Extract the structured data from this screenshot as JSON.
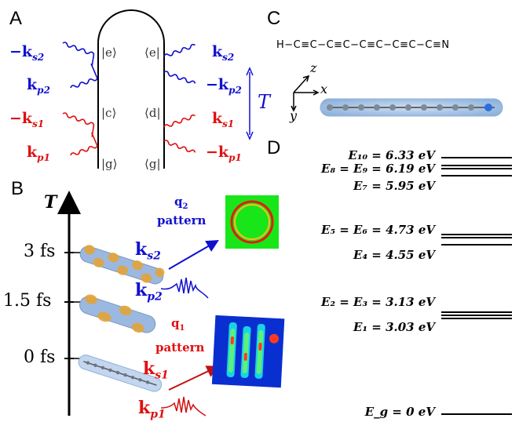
{
  "panels": {
    "A": "A",
    "B": "B",
    "C": "C",
    "D": "D"
  },
  "panelA": {
    "kets_left": [
      "|e⟩",
      "|c⟩",
      "|g⟩"
    ],
    "bras_right": [
      "⟨e|",
      "⟨d|",
      "⟨g|"
    ],
    "left_labels": [
      "−k",
      "k",
      "−k",
      "k"
    ],
    "left_subs": [
      "s2",
      "p2",
      "s1",
      "p1"
    ],
    "right_labels": [
      "k",
      "−k",
      "k",
      "−k"
    ],
    "right_subs": [
      "s2",
      "p2",
      "s1",
      "p1"
    ],
    "T_label": "T",
    "colors": {
      "blue": "#1010d0",
      "red": "#e01010"
    }
  },
  "panelB": {
    "axis_label": "T",
    "ticks": [
      "3 fs",
      "1.5 fs",
      "0 fs"
    ],
    "q2": "q",
    "q2_sub": "2",
    "q2_pattern": "pattern",
    "q1": "q",
    "q1_sub": "1",
    "q1_pattern": "pattern",
    "ks2": "k",
    "ks2_sub": "s2",
    "kp2": "k",
    "kp2_sub": "p2",
    "ks1": "k",
    "ks1_sub": "s1",
    "kp1": "k",
    "kp1_sub": "p1"
  },
  "panelC": {
    "formula": "H−C≡C−C≡C−C≡C−C≡C−C≡N",
    "axes": {
      "x": "x",
      "y": "y",
      "z": "z"
    }
  },
  "panelD": {
    "levels": [
      {
        "label": "E₁₀ = 6.33 eV"
      },
      {
        "label": "E₈ = E₉ = 6.19 eV"
      },
      {
        "label": "E₇ = 5.95 eV"
      },
      {
        "label": "E₅ = E₆ = 4.73 eV"
      },
      {
        "label": "E₄ = 4.55 eV"
      },
      {
        "label": "E₂ = E₃ = 3.13 eV"
      },
      {
        "label": "E₁ = 3.03 eV"
      },
      {
        "label": "E_g = 0 eV"
      }
    ]
  }
}
